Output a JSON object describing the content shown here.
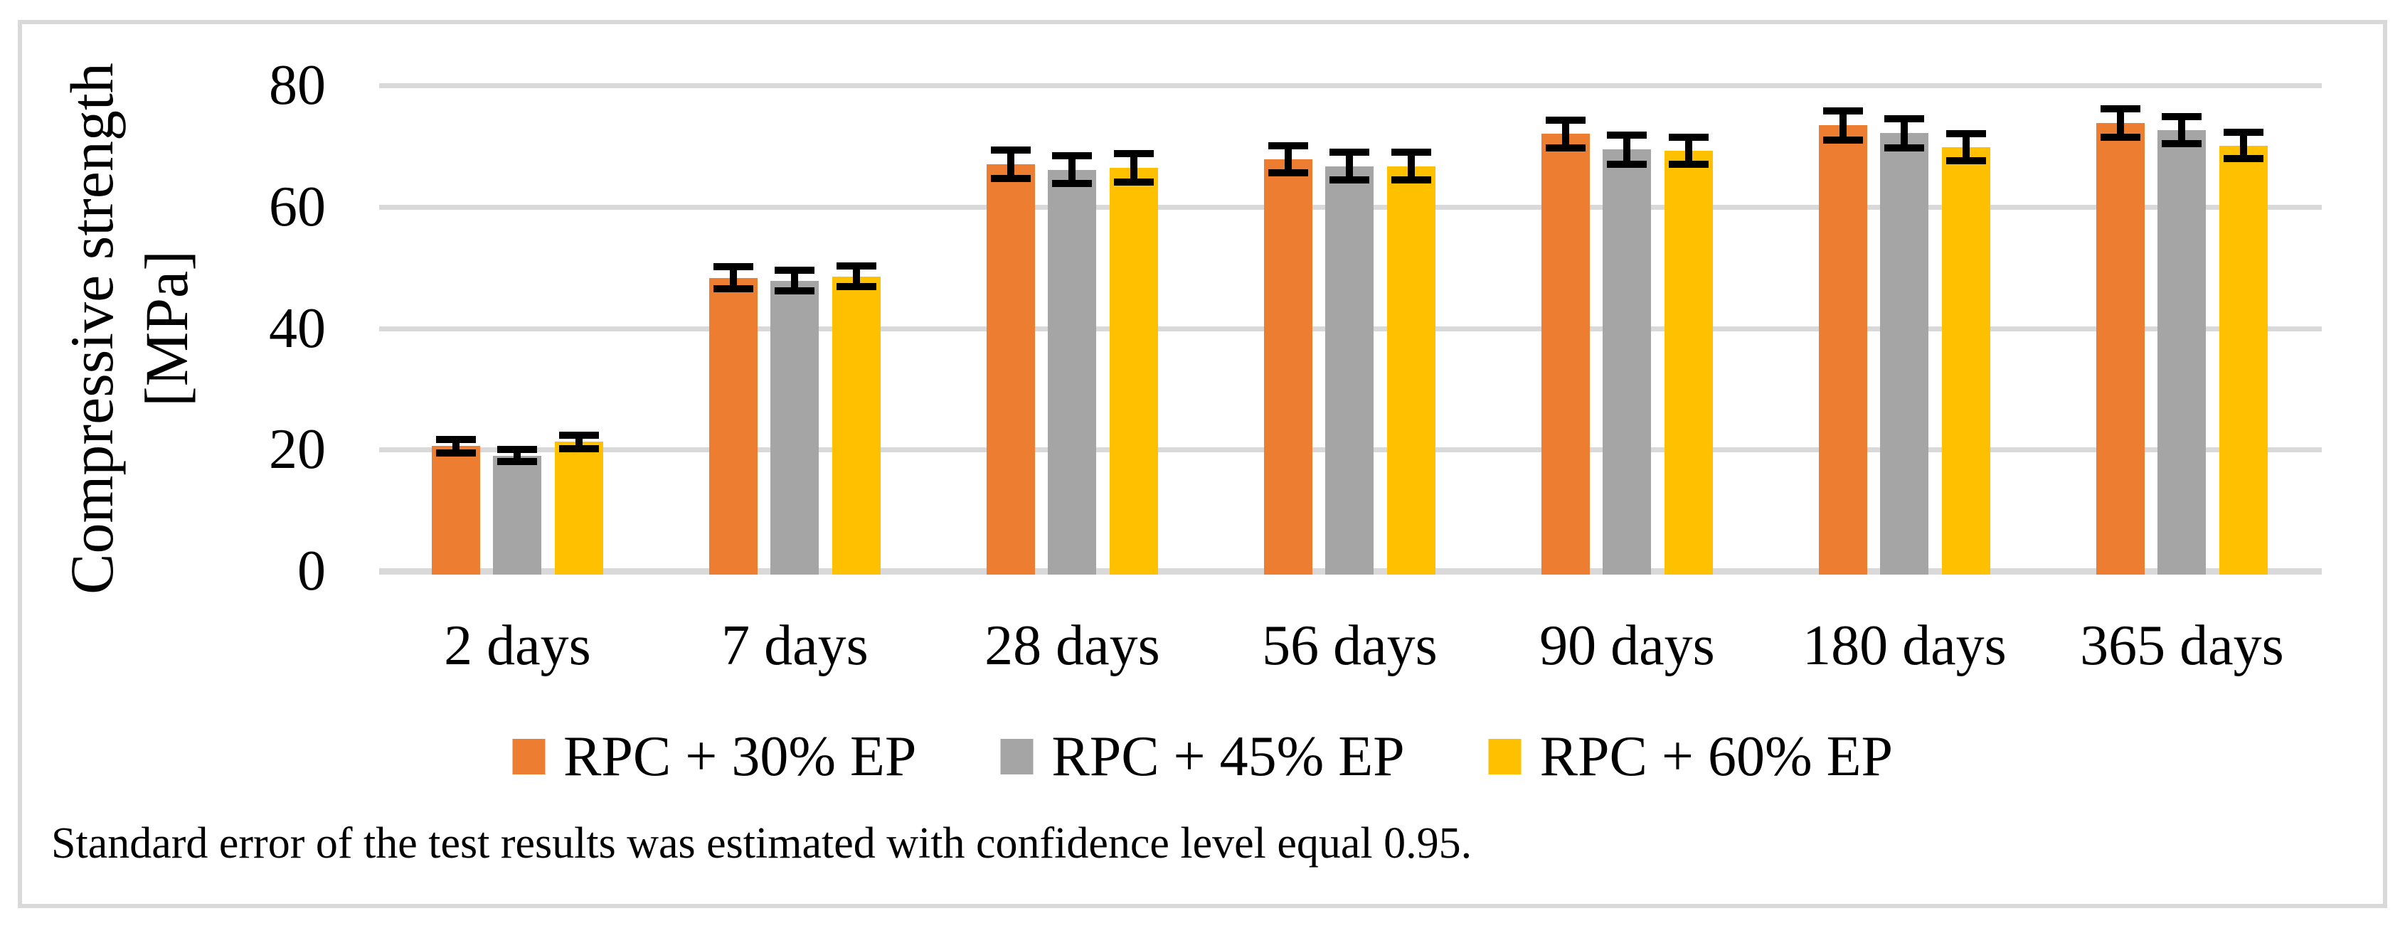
{
  "figure": {
    "footnote": "Standard error of the test results was estimated with confidence level equal 0.95."
  },
  "chart_data": {
    "type": "bar",
    "title": "",
    "xlabel": "",
    "ylabel": "Compressive strength [MPa]",
    "ylabel_lines": [
      "Compressive strength",
      "[MPa]"
    ],
    "categories": [
      "2 days",
      "7 days",
      "28 days",
      "56 days",
      "90 days",
      "180 days",
      "365 days"
    ],
    "series": [
      {
        "name": "RPC + 30% EP",
        "color": "#ED7D31",
        "values": [
          20.6,
          48.3,
          67.0,
          67.8,
          72.0,
          73.4,
          73.8
        ],
        "errors": [
          1.1,
          1.8,
          2.3,
          2.2,
          2.3,
          2.4,
          2.3
        ]
      },
      {
        "name": "RPC + 45% EP",
        "color": "#A5A5A5",
        "values": [
          19.0,
          47.8,
          66.1,
          66.7,
          69.4,
          72.1,
          72.6
        ],
        "errors": [
          1.0,
          1.7,
          2.3,
          2.3,
          2.4,
          2.4,
          2.2
        ]
      },
      {
        "name": "RPC + 60% EP",
        "color": "#FFC000",
        "values": [
          21.3,
          48.5,
          66.4,
          66.7,
          69.2,
          69.8,
          70.1
        ],
        "errors": [
          1.1,
          1.7,
          2.3,
          2.3,
          2.2,
          2.2,
          2.2
        ]
      }
    ],
    "y_ticks": [
      "0",
      "20",
      "40",
      "60",
      "80"
    ],
    "ylim": [
      0,
      80
    ],
    "grid": true,
    "error_bars": true,
    "legend_position": "bottom",
    "colors": {
      "gridline": "#D9D9D9",
      "axis_line": "#D9D9D9",
      "error_bar": "#000000",
      "frame": "#D9D9D9",
      "text": "#000000",
      "background": "#FFFFFF"
    }
  }
}
